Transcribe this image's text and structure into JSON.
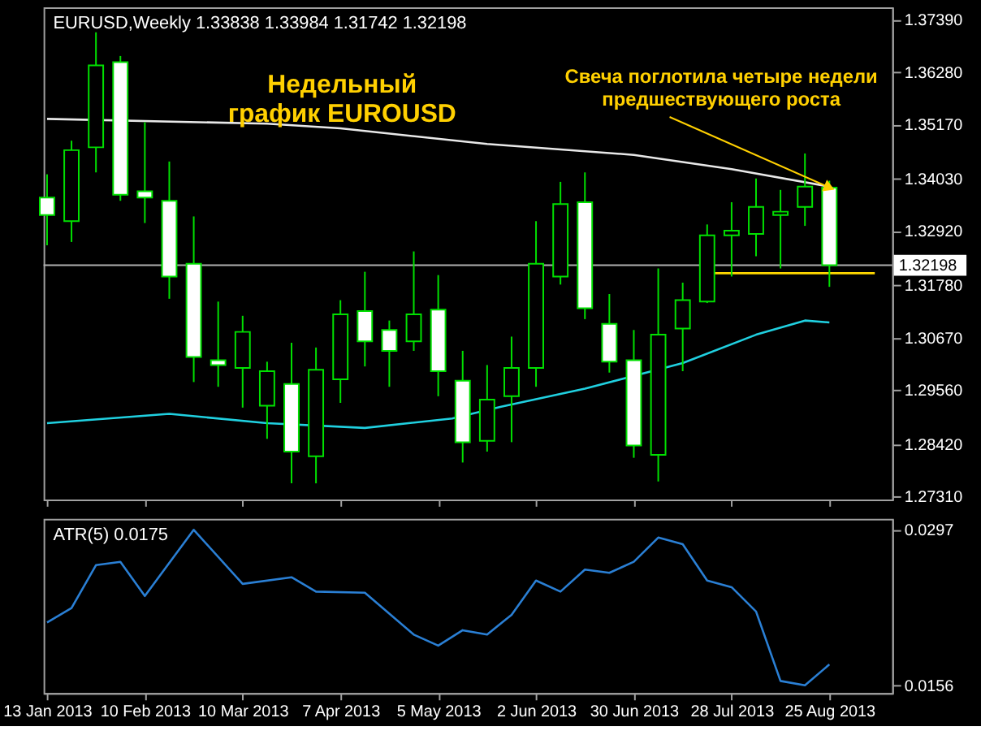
{
  "chart_data": [
    {
      "type": "candlestick",
      "title": "EURUSD,Weekly 1.33838 1.33984 1.31742 1.32198",
      "annotations": [
        "Недельный\nграфик EUROUSD",
        {
          "text": "Свеча поглотила четыре недели\nпредшествующего роста",
          "x": "2013-08-25",
          "y": 1.3384
        }
      ],
      "x": [
        "2013-01-13",
        "2013-01-20",
        "2013-01-27",
        "2013-02-03",
        "2013-02-10",
        "2013-02-17",
        "2013-02-24",
        "2013-03-03",
        "2013-03-10",
        "2013-03-17",
        "2013-03-24",
        "2013-03-31",
        "2013-04-07",
        "2013-04-14",
        "2013-04-21",
        "2013-04-28",
        "2013-05-05",
        "2013-05-12",
        "2013-05-19",
        "2013-05-26",
        "2013-06-02",
        "2013-06-09",
        "2013-06-16",
        "2013-06-23",
        "2013-06-30",
        "2013-07-07",
        "2013-07-14",
        "2013-07-21",
        "2013-07-28",
        "2013-08-04",
        "2013-08-11",
        "2013-08-18",
        "2013-08-25"
      ],
      "ohlc": [
        [
          1.3363,
          1.3412,
          1.3262,
          1.3326
        ],
        [
          1.3313,
          1.3483,
          1.3269,
          1.3463
        ],
        [
          1.3469,
          1.3712,
          1.3416,
          1.3642
        ],
        [
          1.3649,
          1.3662,
          1.3356,
          1.3369
        ],
        [
          1.3376,
          1.3522,
          1.3309,
          1.3363
        ],
        [
          1.3356,
          1.3439,
          1.3149,
          1.3196
        ],
        [
          1.3223,
          1.3323,
          1.2973,
          1.3026
        ],
        [
          1.3019,
          1.3143,
          1.2963,
          1.3009
        ],
        [
          1.3003,
          1.3113,
          1.2919,
          1.3079
        ],
        [
          1.2923,
          1.3016,
          1.2853,
          1.2996
        ],
        [
          1.2969,
          1.3056,
          1.2759,
          1.2826
        ],
        [
          1.2816,
          1.3046,
          1.2759,
          1.2999
        ],
        [
          1.2979,
          1.3146,
          1.2929,
          1.3116
        ],
        [
          1.3123,
          1.3206,
          1.3006,
          1.3059
        ],
        [
          1.3083,
          1.3103,
          1.2963,
          1.3039
        ],
        [
          1.3059,
          1.3249,
          1.3039,
          1.3116
        ],
        [
          1.3126,
          1.3199,
          1.2943,
          1.2996
        ],
        [
          1.2976,
          1.3039,
          1.2803,
          1.2846
        ],
        [
          1.2849,
          1.3009,
          1.2826,
          1.2936
        ],
        [
          1.2943,
          1.3069,
          1.2846,
          1.3003
        ],
        [
          1.3003,
          1.3313,
          1.2963,
          1.3223
        ],
        [
          1.3196,
          1.3396,
          1.3179,
          1.3349
        ],
        [
          1.3353,
          1.3416,
          1.3106,
          1.3129
        ],
        [
          1.3096,
          1.3159,
          1.2993,
          1.3016
        ],
        [
          1.3019,
          1.3083,
          1.2813,
          1.2839
        ],
        [
          1.2819,
          1.3213,
          1.2763,
          1.3073
        ],
        [
          1.3086,
          1.3183,
          1.2996,
          1.3146
        ],
        [
          1.3143,
          1.3306,
          1.314,
          1.3283
        ],
        [
          1.3283,
          1.3353,
          1.3196,
          1.3293
        ],
        [
          1.3286,
          1.3403,
          1.3239,
          1.3343
        ],
        [
          1.3326,
          1.3379,
          1.3213,
          1.3333
        ],
        [
          1.3343,
          1.3456,
          1.3303,
          1.3386
        ],
        [
          1.33838,
          1.33984,
          1.31742,
          1.32198
        ]
      ],
      "series": [
        {
          "type": "line",
          "color": "#e8e8e8",
          "x": [
            "2013-01-13",
            "2013-03-17",
            "2013-04-07",
            "2013-05-19",
            "2013-06-30",
            "2013-07-28",
            "2013-08-25"
          ],
          "values": [
            1.3529,
            1.3519,
            1.3509,
            1.3476,
            1.3453,
            1.3423,
            1.3386
          ]
        },
        {
          "type": "line",
          "color": "#20d0e0",
          "x": [
            "2013-01-13",
            "2013-02-17",
            "2013-03-17",
            "2013-04-14",
            "2013-05-09",
            "2013-05-23",
            "2013-06-16",
            "2013-07-14",
            "2013-08-04",
            "2013-08-18",
            "2013-08-25"
          ],
          "values": [
            1.2886,
            1.2906,
            1.2886,
            1.2876,
            1.2896,
            1.2921,
            1.2959,
            1.3013,
            1.3073,
            1.3103,
            1.3099
          ]
        },
        {
          "type": "line",
          "color": "#ffd700",
          "x": [
            "2013-07-22",
            "2013-09-07"
          ],
          "values": [
            1.3203,
            1.3203
          ]
        }
      ],
      "xlim": [
        "2013-01-12",
        "2013-09-12"
      ],
      "xticks": [
        {
          "value": "2013-01-13",
          "label": null
        },
        {
          "value": "2013-02-10",
          "label": null
        },
        {
          "value": "2013-03-10",
          "label": null
        },
        {
          "value": "2013-04-07",
          "label": null
        },
        {
          "value": "2013-05-05",
          "label": null
        },
        {
          "value": "2013-06-02",
          "label": null
        },
        {
          "value": "2013-06-30",
          "label": null
        },
        {
          "value": "2013-07-28",
          "label": null
        },
        {
          "value": "2013-08-25",
          "label": null
        }
      ],
      "ylim": [
        1.2725,
        1.3765
      ],
      "yticks": [
        {
          "value": 1.2731,
          "label": "1.27310"
        },
        {
          "value": 1.2842,
          "label": "1.28420"
        },
        {
          "value": 1.2956,
          "label": "1.29560"
        },
        {
          "value": 1.3067,
          "label": "1.30670"
        },
        {
          "value": 1.3178,
          "label": "1.31780"
        },
        {
          "value": 1.3292,
          "label": "1.32920"
        },
        {
          "value": 1.3403,
          "label": "1.34030"
        },
        {
          "value": 1.3517,
          "label": "1.35170"
        },
        {
          "value": 1.3628,
          "label": "1.36280"
        },
        {
          "value": 1.3739,
          "label": "1.37390"
        }
      ],
      "ref_lines": [
        {
          "axis": "y",
          "value": 1.32198,
          "label": "1.32198",
          "color": "#b0b0b0"
        }
      ],
      "grid": false,
      "legend": false,
      "tick_labels": "y"
    },
    {
      "type": "line",
      "title": "ATR(5) 0.0175",
      "x": [
        "2013-01-13",
        "2013-01-20",
        "2013-01-27",
        "2013-02-03",
        "2013-02-10",
        "2013-02-24",
        "2013-03-10",
        "2013-03-24",
        "2013-03-31",
        "2013-04-14",
        "2013-04-28",
        "2013-05-05",
        "2013-05-12",
        "2013-05-19",
        "2013-05-26",
        "2013-06-02",
        "2013-06-09",
        "2013-06-16",
        "2013-06-23",
        "2013-06-30",
        "2013-07-07",
        "2013-07-14",
        "2013-07-21",
        "2013-07-28",
        "2013-08-04",
        "2013-08-11",
        "2013-08-18",
        "2013-08-25"
      ],
      "series": [
        {
          "color": "#2a7fd4",
          "values": [
            0.0213,
            0.0226,
            0.0265,
            0.0268,
            0.0237,
            0.0297,
            0.0248,
            0.0254,
            0.0241,
            0.024,
            0.0202,
            0.0192,
            0.0206,
            0.0202,
            0.022,
            0.0251,
            0.0241,
            0.0261,
            0.0258,
            0.0268,
            0.029,
            0.0284,
            0.0251,
            0.0245,
            0.0223,
            0.016,
            0.0156,
            0.0175
          ]
        }
      ],
      "xlim": [
        "2013-01-12",
        "2013-09-12"
      ],
      "xticks": [
        {
          "value": "2013-01-13",
          "label": "13 Jan 2013"
        },
        {
          "value": "2013-02-10",
          "label": "10 Feb 2013"
        },
        {
          "value": "2013-03-10",
          "label": "10 Mar 2013"
        },
        {
          "value": "2013-04-07",
          "label": "7 Apr 2013"
        },
        {
          "value": "2013-05-05",
          "label": "5 May 2013"
        },
        {
          "value": "2013-06-02",
          "label": "2 Jun 2013"
        },
        {
          "value": "2013-06-30",
          "label": "30 Jun 2013"
        },
        {
          "value": "2013-07-28",
          "label": "28 Jul 2013"
        },
        {
          "value": "2013-08-25",
          "label": "25 Aug 2013"
        }
      ],
      "ylim": [
        0.0149,
        0.0307
      ],
      "yticks": [
        0.0297,
        0.0156
      ],
      "grid": false,
      "legend": false
    }
  ]
}
